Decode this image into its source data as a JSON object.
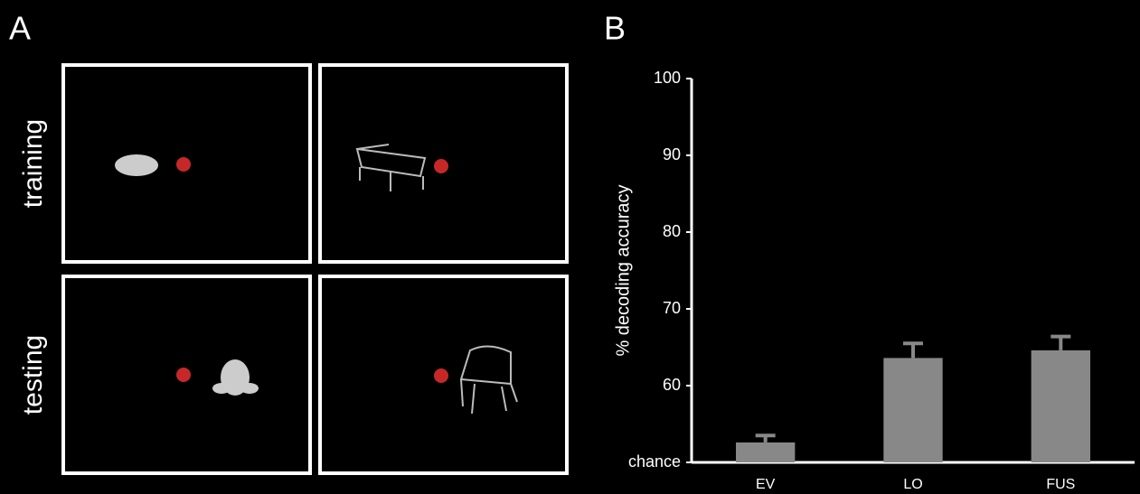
{
  "panel_labels": [
    "A",
    "B"
  ],
  "stimuli": {
    "rows": [
      "training",
      "testing"
    ]
  },
  "chart_data": {
    "type": "bar",
    "y_label": "% decoding accuracy",
    "categories": [
      "EV",
      "LO",
      "FUS"
    ],
    "values": [
      52.6,
      63.6,
      64.6
    ],
    "errors": [
      0.9,
      1.9,
      1.8
    ],
    "color": "#888888",
    "ylim": [
      50,
      100
    ],
    "yticks": [
      {
        "value": 50,
        "label": "chance"
      },
      60,
      70,
      80,
      90,
      100
    ]
  }
}
